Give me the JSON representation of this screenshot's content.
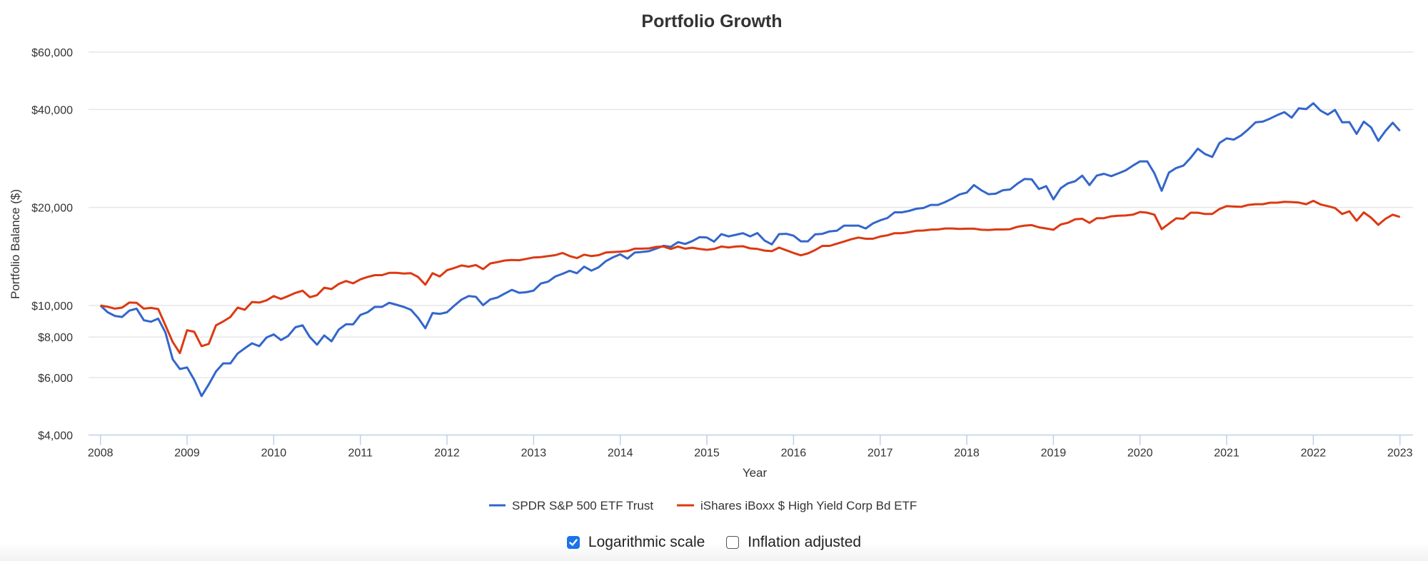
{
  "colors": {
    "series1": "#3366CC",
    "series2": "#DC3912",
    "grid": "#e6e6e6",
    "axis": "#c0d0e8"
  },
  "controls": {
    "log_scale": {
      "label": "Logarithmic scale",
      "checked": true
    },
    "inflation": {
      "label": "Inflation adjusted",
      "checked": false
    }
  },
  "chart_data": {
    "type": "line",
    "title": "Portfolio Growth",
    "xlabel": "Year",
    "ylabel": "Portfolio Balance ($)",
    "y_scale": "log",
    "ylim": [
      4000,
      60000
    ],
    "xlim": [
      2008,
      2023
    ],
    "y_ticks": [
      4000,
      6000,
      8000,
      10000,
      20000,
      40000,
      60000
    ],
    "y_tick_labels": [
      "$4,000",
      "$6,000",
      "$8,000",
      "$10,000",
      "$20,000",
      "$40,000",
      "$60,000"
    ],
    "x_ticks": [
      "2008",
      "2009",
      "2010",
      "2011",
      "2012",
      "2013",
      "2014",
      "2015",
      "2016",
      "2017",
      "2018",
      "2019",
      "2020",
      "2021",
      "2022",
      "2023"
    ],
    "grid": true,
    "legend_position": "bottom",
    "x_start": "2008-01",
    "frequency": "monthly",
    "series": [
      {
        "name": "SPDR S&P 500 ETF Trust",
        "color": "#3366CC",
        "values": [
          10000,
          9530,
          9290,
          9220,
          9640,
          9780,
          9010,
          8910,
          9110,
          8260,
          6840,
          6380,
          6450,
          5910,
          5270,
          5720,
          6270,
          6640,
          6640,
          7120,
          7390,
          7650,
          7500,
          7970,
          8150,
          7830,
          8060,
          8570,
          8690,
          8000,
          7580,
          8090,
          7760,
          8430,
          8750,
          8750,
          9350,
          9530,
          9900,
          9900,
          10190,
          10050,
          9900,
          9700,
          9160,
          8510,
          9480,
          9420,
          9530,
          9980,
          10420,
          10690,
          10630,
          10020,
          10440,
          10580,
          10880,
          11170,
          10940,
          10980,
          11110,
          11680,
          11830,
          12270,
          12510,
          12780,
          12560,
          13160,
          12790,
          13100,
          13680,
          14060,
          14360,
          13930,
          14530,
          14600,
          14680,
          14960,
          15250,
          15130,
          15650,
          15450,
          15770,
          16220,
          16170,
          15700,
          16560,
          16300,
          16480,
          16670,
          16300,
          16690,
          15820,
          15400,
          16560,
          16600,
          16380,
          15740,
          15740,
          16540,
          16600,
          16880,
          16960,
          17590,
          17590,
          17590,
          17240,
          17870,
          18260,
          18560,
          19320,
          19320,
          19520,
          19810,
          19920,
          20360,
          20360,
          20780,
          21300,
          21930,
          22220,
          23430,
          22590,
          21960,
          22040,
          22590,
          22710,
          23660,
          24460,
          24400,
          22780,
          23250,
          21180,
          22900,
          23720,
          24080,
          25040,
          23430,
          25040,
          25370,
          24960,
          25450,
          26000,
          26880,
          27710,
          27710,
          25450,
          22500,
          25580,
          26430,
          26880,
          28390,
          30310,
          29180,
          28580,
          31540,
          32600,
          32320,
          33290,
          34760,
          36510,
          36690,
          37480,
          38420,
          39240,
          37740,
          40340,
          40080,
          41770,
          39670,
          38560,
          39870,
          36510,
          36570,
          33640,
          36690,
          35220,
          32040,
          34370,
          36400,
          34370
        ]
      },
      {
        "name": "iShares iBoxx $ High Yield Corp Bd ETF",
        "color": "#DC3912",
        "values": [
          10000,
          9910,
          9780,
          9850,
          10210,
          10190,
          9780,
          9830,
          9750,
          8690,
          7730,
          7140,
          8390,
          8300,
          7500,
          7620,
          8690,
          8930,
          9220,
          9850,
          9700,
          10250,
          10210,
          10370,
          10690,
          10470,
          10690,
          10930,
          11100,
          10600,
          10750,
          11340,
          11230,
          11640,
          11890,
          11700,
          12030,
          12230,
          12390,
          12390,
          12590,
          12590,
          12530,
          12560,
          12230,
          11580,
          12560,
          12270,
          12830,
          13030,
          13270,
          13160,
          13310,
          12930,
          13460,
          13590,
          13740,
          13800,
          13770,
          13900,
          14040,
          14080,
          14180,
          14270,
          14500,
          14180,
          13980,
          14320,
          14180,
          14270,
          14540,
          14590,
          14630,
          14690,
          14940,
          14940,
          14970,
          15130,
          15170,
          14910,
          15170,
          14940,
          15040,
          14910,
          14820,
          14910,
          15170,
          15070,
          15170,
          15200,
          14970,
          14910,
          14740,
          14680,
          15060,
          14770,
          14500,
          14260,
          14450,
          14800,
          15240,
          15240,
          15480,
          15720,
          15970,
          16170,
          16030,
          16030,
          16280,
          16420,
          16670,
          16670,
          16790,
          16960,
          16990,
          17100,
          17120,
          17240,
          17240,
          17180,
          17210,
          17210,
          17080,
          17050,
          17120,
          17120,
          17150,
          17440,
          17590,
          17650,
          17380,
          17240,
          17080,
          17720,
          17950,
          18390,
          18460,
          17930,
          18540,
          18540,
          18780,
          18870,
          18900,
          19000,
          19370,
          19270,
          19000,
          17150,
          17830,
          18520,
          18460,
          19270,
          19270,
          19100,
          19100,
          19780,
          20190,
          20130,
          20090,
          20360,
          20460,
          20460,
          20680,
          20680,
          20810,
          20780,
          20700,
          20460,
          20960,
          20430,
          20190,
          19920,
          19100,
          19470,
          18200,
          19310,
          18600,
          17690,
          18460,
          19000,
          18700
        ]
      }
    ]
  }
}
